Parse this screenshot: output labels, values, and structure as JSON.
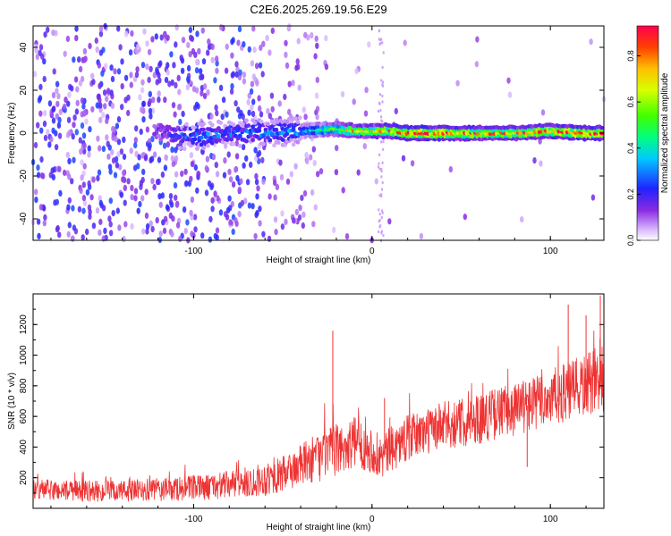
{
  "title": "C2E6.2025.269.19.56.E29",
  "chart_data": [
    {
      "type": "heatmap",
      "xlabel": "Height of straight line (km)",
      "ylabel": "Frequency (Hz)",
      "xlim": [
        -190,
        130
      ],
      "ylim": [
        -50,
        50
      ],
      "xticks": [
        -100,
        0,
        100
      ],
      "xtick_labels": [
        "-100",
        "0",
        "100"
      ],
      "yticks": [
        -40,
        -20,
        0,
        20,
        40
      ],
      "ytick_labels": [
        "-40",
        "-20",
        "0",
        "20",
        "40"
      ],
      "colorbar": {
        "label": "Normalized spectral amplitude",
        "range": [
          0,
          0.93
        ],
        "ticks": [
          0,
          0.2,
          0.4,
          0.6,
          0.8
        ],
        "tick_labels": [
          "0.0",
          "0.2",
          "0.4",
          "0.6",
          "0.8"
        ],
        "colormap": "rainbow (white at 0, violet, blue, cyan, green, yellow, orange, red)"
      },
      "description": "Diffuse violet noise for heights below about -40 km; a narrow bright band near 0 Hz from about -120 km to 130 km, brightest (red) above -20 km",
      "band_profile": [
        {
          "x": -120,
          "y": 1,
          "amp": 0.15
        },
        {
          "x": -100,
          "y": -2,
          "amp": 0.3
        },
        {
          "x": -80,
          "y": 0,
          "amp": 0.28
        },
        {
          "x": -60,
          "y": 0,
          "amp": 0.3
        },
        {
          "x": -40,
          "y": 1,
          "amp": 0.35
        },
        {
          "x": -20,
          "y": 2,
          "amp": 0.55
        },
        {
          "x": -10,
          "y": 1,
          "amp": 0.75
        },
        {
          "x": 0,
          "y": 1,
          "amp": 0.7
        },
        {
          "x": 10,
          "y": 1,
          "amp": 0.8
        },
        {
          "x": 20,
          "y": 0,
          "amp": 0.9
        },
        {
          "x": 40,
          "y": 0,
          "amp": 0.85
        },
        {
          "x": 60,
          "y": 0,
          "amp": 0.8
        },
        {
          "x": 80,
          "y": 0,
          "amp": 0.8
        },
        {
          "x": 100,
          "y": 1,
          "amp": 0.85
        },
        {
          "x": 120,
          "y": 0,
          "amp": 0.9
        }
      ],
      "colors": {
        "violet": "#7a2cf0",
        "blue": "#2020ff",
        "cyan": "#00e8e8",
        "green": "#30e030",
        "yellow": "#f0f000",
        "red": "#ff2020"
      }
    },
    {
      "type": "line",
      "xlabel": "Height of straight line (km)",
      "ylabel": "SNR (10 * v/v)",
      "xlim": [
        -190,
        130
      ],
      "ylim": [
        0,
        1400
      ],
      "xticks": [
        -100,
        0,
        100
      ],
      "xtick_labels": [
        "-100",
        "0",
        "100"
      ],
      "yticks": [
        200,
        400,
        600,
        800,
        1000,
        1200
      ],
      "ytick_labels": [
        "200",
        "400",
        "600",
        "800",
        "1000",
        "1200"
      ],
      "line_color": "#ee3333",
      "series": [
        {
          "x": [
            -190,
            -170,
            -150,
            -130,
            -110,
            -90,
            -70,
            -60,
            -50,
            -40,
            -35,
            -30,
            -25,
            -20,
            -15,
            -10,
            -5,
            0,
            5,
            10,
            15,
            20,
            30,
            40,
            50,
            60,
            70,
            80,
            90,
            100,
            110,
            120,
            130
          ],
          "y": [
            120,
            115,
            110,
            115,
            125,
            140,
            170,
            190,
            220,
            280,
            310,
            330,
            360,
            380,
            400,
            430,
            410,
            380,
            330,
            380,
            420,
            460,
            500,
            540,
            560,
            590,
            620,
            650,
            680,
            720,
            760,
            800,
            850
          ],
          "noise": [
            70,
            70,
            70,
            75,
            80,
            85,
            100,
            110,
            120,
            140,
            150,
            160,
            160,
            170,
            170,
            170,
            160,
            150,
            150,
            150,
            150,
            150,
            150,
            160,
            160,
            170,
            170,
            180,
            180,
            190,
            200,
            210,
            230
          ]
        }
      ],
      "spikes": [
        {
          "x": -22,
          "y": 1160
        },
        {
          "x": 7,
          "y": 720
        },
        {
          "x": 110,
          "y": 1330
        },
        {
          "x": 120,
          "y": 1260
        },
        {
          "x": 128,
          "y": 1390
        },
        {
          "x": 87,
          "y": 270
        }
      ]
    }
  ]
}
